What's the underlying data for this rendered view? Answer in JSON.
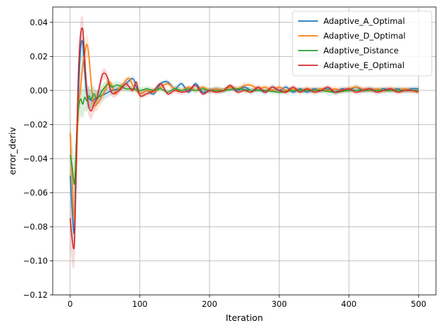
{
  "chart_data": {
    "type": "line",
    "xlabel": "Iteration",
    "ylabel": "error_deriv",
    "xlim": [
      -25,
      525
    ],
    "ylim": [
      -0.12,
      0.049
    ],
    "xticks": [
      0,
      100,
      200,
      300,
      400,
      500
    ],
    "xtick_labels": [
      "0",
      "100",
      "200",
      "300",
      "400",
      "500"
    ],
    "yticks": [
      -0.12,
      -0.1,
      -0.08,
      -0.06,
      -0.04,
      -0.02,
      0.0,
      0.02,
      0.04
    ],
    "ytick_labels": [
      "−0.12",
      "−0.10",
      "−0.08",
      "−0.06",
      "−0.04",
      "−0.02",
      "0.00",
      "0.02",
      "0.04"
    ],
    "grid": true,
    "legend_position": "top-right",
    "series": [
      {
        "name": "Adaptive_A_Optimal",
        "color": "#1f77b4",
        "x": [
          0,
          3,
          6,
          8,
          10,
          12,
          15,
          18,
          21,
          24,
          28,
          32,
          36,
          40,
          45,
          50,
          55,
          60,
          70,
          80,
          90,
          95,
          100,
          110,
          120,
          130,
          140,
          150,
          160,
          170,
          180,
          190,
          200,
          210,
          220,
          230,
          240,
          250,
          260,
          270,
          280,
          290,
          300,
          310,
          320,
          330,
          340,
          350,
          360,
          370,
          380,
          390,
          400,
          410,
          420,
          430,
          440,
          450,
          460,
          470,
          480,
          490,
          500
        ],
        "y": [
          -0.05,
          -0.07,
          -0.083,
          -0.045,
          -0.02,
          0.0,
          0.025,
          0.028,
          0.01,
          -0.003,
          -0.005,
          -0.006,
          -0.005,
          -0.004,
          -0.003,
          -0.002,
          -0.001,
          0.0,
          0.001,
          0.004,
          0.007,
          0.002,
          -0.002,
          0.0,
          -0.002,
          0.004,
          0.005,
          0.001,
          0.004,
          -0.001,
          0.004,
          -0.001,
          0.0,
          0.001,
          0.0,
          0.002,
          0.0,
          0.002,
          0.0,
          0.001,
          -0.001,
          0.002,
          0.0,
          0.002,
          -0.001,
          0.001,
          -0.001,
          0.001,
          0.0,
          0.001,
          -0.001,
          0.001,
          0.0,
          0.002,
          0.0,
          0.001,
          0.0,
          0.001,
          0.0,
          0.001,
          0.0,
          0.001,
          0.001
        ]
      },
      {
        "name": "Adaptive_D_Optimal",
        "color": "#ff7f0e",
        "x": [
          0,
          3,
          6,
          8,
          10,
          12,
          15,
          18,
          21,
          24,
          27,
          30,
          34,
          38,
          42,
          46,
          50,
          55,
          60,
          65,
          70,
          75,
          80,
          85,
          90,
          95,
          100,
          110,
          120,
          130,
          140,
          150,
          160,
          170,
          180,
          190,
          200,
          210,
          220,
          230,
          240,
          250,
          260,
          270,
          280,
          290,
          300,
          310,
          320,
          330,
          340,
          350,
          360,
          370,
          380,
          390,
          400,
          410,
          420,
          430,
          440,
          450,
          460,
          470,
          480,
          490,
          500
        ],
        "y": [
          -0.025,
          -0.055,
          -0.075,
          -0.06,
          -0.03,
          -0.01,
          0.002,
          0.015,
          0.022,
          0.027,
          0.02,
          0.005,
          -0.008,
          -0.008,
          -0.006,
          -0.003,
          0.0,
          0.005,
          0.003,
          -0.002,
          0.001,
          0.003,
          0.006,
          0.007,
          0.003,
          0.0,
          -0.002,
          0.0,
          -0.001,
          0.002,
          0.004,
          0.001,
          0.0,
          0.002,
          0.0,
          0.002,
          0.0,
          0.001,
          0.0,
          0.002,
          0.001,
          0.003,
          0.003,
          0.001,
          0.002,
          0.0,
          0.002,
          0.0,
          0.001,
          0.0,
          0.001,
          0.0,
          0.001,
          0.0,
          0.001,
          0.0,
          0.001,
          0.002,
          0.001,
          0.0,
          0.001,
          0.0,
          0.001,
          0.0,
          0.001,
          0.0,
          0.0
        ]
      },
      {
        "name": "Adaptive_Distance",
        "color": "#2ca02c",
        "x": [
          0,
          3,
          6,
          8,
          10,
          12,
          15,
          18,
          21,
          24,
          27,
          30,
          34,
          38,
          42,
          46,
          50,
          55,
          60,
          65,
          70,
          80,
          90,
          100,
          110,
          120,
          130,
          140,
          150,
          160,
          170,
          180,
          190,
          200,
          220,
          240,
          260,
          280,
          300,
          320,
          340,
          360,
          380,
          400,
          420,
          440,
          460,
          480,
          500
        ],
        "y": [
          -0.038,
          -0.045,
          -0.055,
          -0.04,
          -0.02,
          -0.01,
          -0.005,
          -0.008,
          -0.004,
          -0.006,
          -0.003,
          -0.005,
          -0.002,
          -0.005,
          -0.003,
          0.0,
          0.002,
          0.004,
          0.002,
          0.003,
          0.003,
          0.001,
          0.001,
          0.0,
          0.001,
          0.0,
          0.001,
          -0.001,
          0.001,
          0.0,
          0.001,
          0.0,
          0.001,
          0.0,
          0.0,
          0.001,
          0.0,
          0.0,
          -0.001,
          0.0,
          0.0,
          0.0,
          -0.001,
          0.0,
          0.0,
          0.0,
          0.0,
          0.0,
          0.0
        ]
      },
      {
        "name": "Adaptive_E_Optimal",
        "color": "#d62728",
        "x": [
          0,
          3,
          6,
          8,
          10,
          12,
          15,
          18,
          20,
          23,
          26,
          30,
          34,
          38,
          42,
          46,
          50,
          54,
          58,
          62,
          66,
          70,
          75,
          80,
          85,
          90,
          95,
          100,
          110,
          120,
          130,
          140,
          150,
          160,
          170,
          180,
          190,
          200,
          210,
          220,
          230,
          240,
          250,
          260,
          270,
          280,
          290,
          300,
          310,
          320,
          330,
          340,
          350,
          360,
          370,
          380,
          390,
          400,
          410,
          420,
          430,
          440,
          450,
          460,
          470,
          480,
          490,
          500
        ],
        "y": [
          -0.075,
          -0.088,
          -0.091,
          -0.06,
          -0.02,
          0.012,
          0.033,
          0.036,
          0.025,
          0.005,
          -0.008,
          -0.012,
          -0.008,
          -0.005,
          0.002,
          0.009,
          0.01,
          0.007,
          0.0,
          -0.002,
          -0.001,
          0.0,
          0.002,
          0.004,
          0.002,
          0.0,
          0.005,
          -0.003,
          -0.002,
          0.0,
          0.004,
          -0.002,
          0.0,
          -0.001,
          0.0,
          0.003,
          -0.002,
          0.0,
          -0.001,
          0.0,
          0.003,
          -0.001,
          0.0,
          -0.001,
          0.002,
          -0.001,
          0.002,
          0.0,
          -0.001,
          0.002,
          -0.001,
          0.001,
          -0.001,
          0.0,
          0.002,
          -0.001,
          0.0,
          0.001,
          -0.001,
          0.0,
          0.001,
          -0.001,
          0.0,
          0.001,
          -0.001,
          0.0,
          0.0,
          -0.001
        ]
      }
    ]
  }
}
